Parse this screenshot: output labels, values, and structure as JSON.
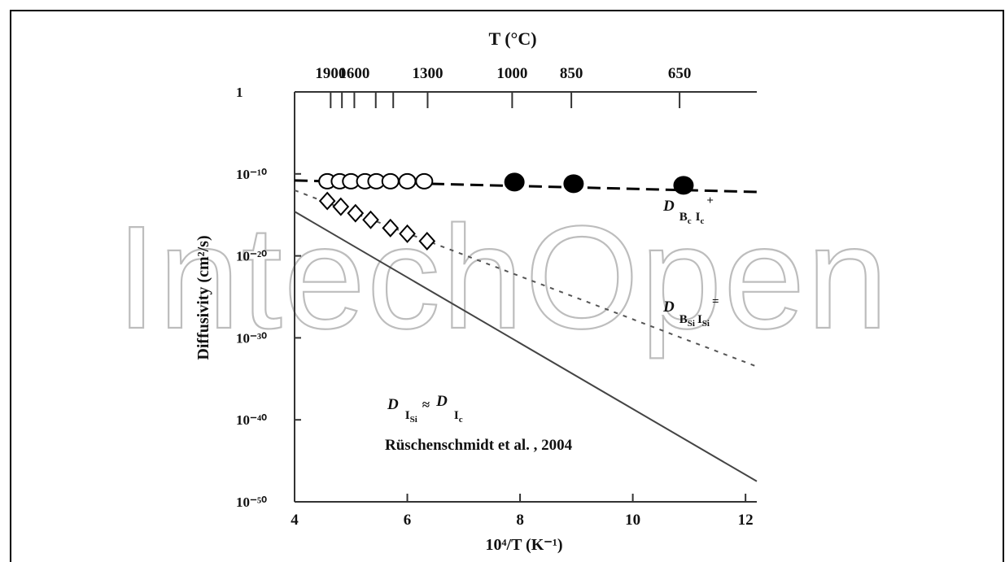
{
  "watermark": "IntechOpen",
  "chart_data": {
    "type": "scatter",
    "top_axis": {
      "label": "T (°C)",
      "ticks": [
        {
          "label": "1900",
          "value": 4.64
        },
        {
          "label": "1600",
          "value": 5.06
        },
        {
          "label": "1300",
          "value": 6.36
        },
        {
          "label": "1000",
          "value": 7.86
        },
        {
          "label": "850",
          "value": 8.91
        },
        {
          "label": "650",
          "value": 10.83
        }
      ],
      "extra_tick_values": [
        4.84,
        5.44,
        5.75
      ]
    },
    "xlabel": "10⁴/T (K⁻¹)",
    "xlim": [
      4,
      12.2
    ],
    "xticks": [
      4,
      6,
      8,
      10,
      12
    ],
    "ylabel": "Diffusivity (cm²/s)",
    "ylim": [
      -50,
      0
    ],
    "yticks": [
      {
        "label": "1",
        "exp": 0
      },
      {
        "label": "10⁻¹⁰",
        "exp": -10
      },
      {
        "label": "10⁻²⁰",
        "exp": -20
      },
      {
        "label": "10⁻³⁰",
        "exp": -30
      },
      {
        "label": "10⁻⁴⁰",
        "exp": -40
      },
      {
        "label": "10⁻⁵⁰",
        "exp": -50
      }
    ],
    "series": [
      {
        "name": "D B_c I_c⁺",
        "style": "dashed",
        "line": [
          [
            4,
            -10.8
          ],
          [
            12.2,
            -12.2
          ]
        ],
        "open_circles": [
          [
            4.58,
            -10.9
          ],
          [
            4.8,
            -10.9
          ],
          [
            5.0,
            -10.9
          ],
          [
            5.25,
            -10.9
          ],
          [
            5.45,
            -10.9
          ],
          [
            5.7,
            -10.9
          ],
          [
            6.0,
            -10.9
          ],
          [
            6.3,
            -10.9
          ]
        ],
        "filled_circles": [
          [
            7.9,
            -11.0
          ],
          [
            8.95,
            -11.2
          ],
          [
            10.9,
            -11.4
          ]
        ]
      },
      {
        "name": "D B_Si I_Si⁼",
        "style": "dotted",
        "line": [
          [
            4,
            -12.0
          ],
          [
            12.2,
            -33.5
          ]
        ],
        "open_diamonds": [
          [
            4.58,
            -13.3
          ],
          [
            4.82,
            -14.0
          ],
          [
            5.08,
            -14.8
          ],
          [
            5.35,
            -15.6
          ],
          [
            5.7,
            -16.6
          ],
          [
            6.0,
            -17.3
          ],
          [
            6.35,
            -18.2
          ]
        ]
      },
      {
        "name": "D I_Si ≈ D I_c",
        "style": "solid",
        "line": [
          [
            4,
            -14.6
          ],
          [
            12.2,
            -47.5
          ]
        ]
      }
    ],
    "annotations": [
      {
        "text": "Rüschenschmidt et al. , 2004"
      }
    ]
  }
}
